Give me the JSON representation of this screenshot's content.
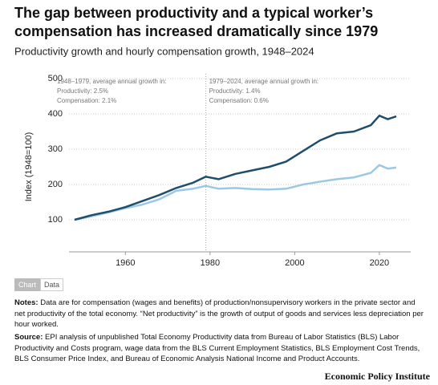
{
  "chart_data": {
    "type": "line",
    "title": "The gap between productivity and a typical worker’s compensation has increased dramatically since 1979",
    "subtitle": "Productivity growth and hourly compensation growth, 1948–2024",
    "y_label": "Index (1948=100)",
    "x": [
      1948,
      1952,
      1956,
      1960,
      1964,
      1968,
      1972,
      1976,
      1979,
      1982,
      1986,
      1990,
      1994,
      1998,
      2002,
      2006,
      2010,
      2014,
      2018,
      2020,
      2022,
      2024
    ],
    "series": [
      {
        "name": "Productivity",
        "color": "#1f4e6b",
        "values": [
          100,
          113,
          123,
          136,
          153,
          170,
          190,
          205,
          222,
          215,
          230,
          240,
          250,
          265,
          295,
          325,
          345,
          350,
          368,
          395,
          385,
          393
        ]
      },
      {
        "name": "Compensation",
        "color": "#9cc8e4",
        "values": [
          100,
          110,
          121,
          133,
          143,
          158,
          182,
          188,
          196,
          188,
          190,
          187,
          186,
          188,
          200,
          208,
          215,
          220,
          233,
          255,
          245,
          248
        ]
      }
    ],
    "xlim": [
      1948,
      2024
    ],
    "xticks": [
      1960,
      1980,
      2000,
      2020
    ],
    "ylim": [
      0,
      500
    ],
    "yticks": [
      100,
      200,
      300,
      400,
      500
    ],
    "grid": true,
    "annotations": [
      {
        "x": 1948,
        "lines": [
          "1948–1979, average annual growth in:",
          "Productivity: 2.5%",
          "Compensation: 2.1%"
        ]
      },
      {
        "x": 1979,
        "lines": [
          "1979–2024, average annual growth in:",
          "Productivity: 1.4%",
          "Compensation: 0.6%"
        ]
      }
    ]
  },
  "tabs": [
    "Chart",
    "Data"
  ],
  "notes": {
    "label": "Notes:",
    "text": "Data are for compensation (wages and benefits) of production/nonsupervisory workers in the private sector and net productivity of the total economy. “Net productivity” is the growth of output of goods and services less depreciation per hour worked."
  },
  "source": {
    "label": "Source:",
    "text": "EPI analysis of unpublished Total Economy Productivity data from Bureau of Labor Statistics (BLS) Labor Productivity and Costs program, wage data from the BLS Current Employment Statistics, BLS Employment Cost Trends, BLS Consumer Price Index, and Bureau of Economic Analysis National Income and Product Accounts."
  },
  "publisher": "Economic Policy Institute"
}
